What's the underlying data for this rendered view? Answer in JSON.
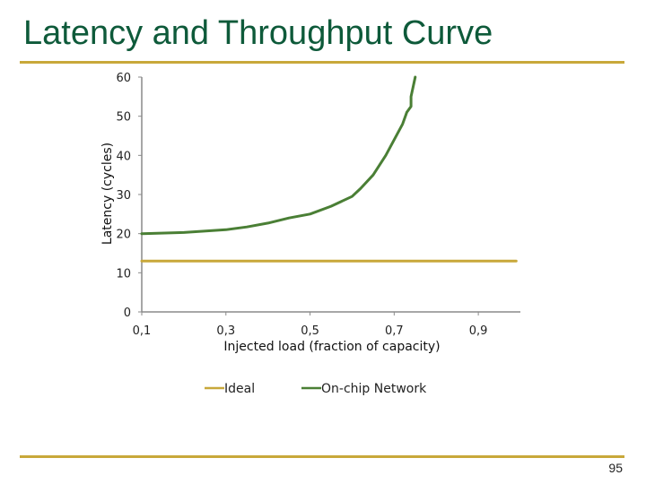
{
  "slide": {
    "title": "Latency and Throughput Curve",
    "page_number": "95"
  },
  "colors": {
    "title": "#0e5a3a",
    "rule": "#c8a83a",
    "ideal": "#c8a83a",
    "network": "#4a7f35",
    "axis": "#8a8a8a"
  },
  "chart_data": {
    "type": "line",
    "title": "",
    "xlabel": "Injected load (fraction of capacity)",
    "ylabel": "Latency (cycles)",
    "xlim": [
      0.1,
      1.0
    ],
    "ylim": [
      0,
      60
    ],
    "x_ticks": [
      "0,1",
      "0,3",
      "0,5",
      "0,7",
      "0,9"
    ],
    "y_ticks": [
      "0",
      "10",
      "20",
      "30",
      "40",
      "50",
      "60"
    ],
    "legend_position": "bottom",
    "series": [
      {
        "name": "Ideal",
        "color": "#c8a83a",
        "x": [
          0.1,
          0.99
        ],
        "y": [
          13,
          13
        ]
      },
      {
        "name": "On-chip Network",
        "color": "#4a7f35",
        "x": [
          0.1,
          0.2,
          0.3,
          0.35,
          0.4,
          0.45,
          0.5,
          0.55,
          0.6,
          0.62,
          0.65,
          0.68,
          0.7,
          0.72,
          0.73,
          0.74,
          0.74,
          0.75
        ],
        "y": [
          20,
          20.3,
          21,
          21.7,
          22.7,
          24,
          25,
          27,
          29.5,
          31.5,
          35,
          40,
          44,
          48,
          51,
          52.5,
          55,
          60
        ]
      }
    ]
  }
}
